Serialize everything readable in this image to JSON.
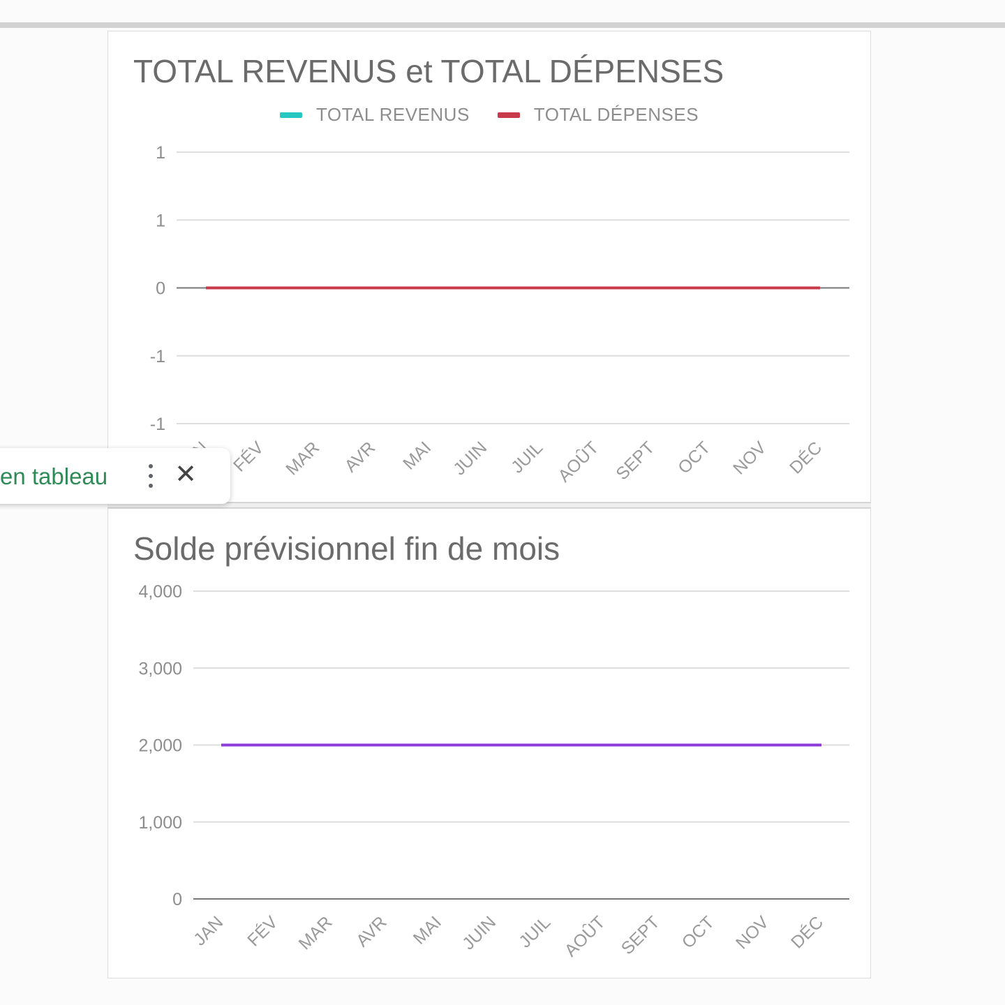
{
  "colors": {
    "revenus": "#26c6c1",
    "depenses": "#c8394a",
    "solde": "#8e3ad8"
  },
  "chart_data": [
    {
      "type": "line",
      "title": "TOTAL REVENUS et TOTAL DÉPENSES",
      "categories": [
        "JAN",
        "FÉV",
        "MAR",
        "AVR",
        "MAI",
        "JUIN",
        "JUIL",
        "AOÛT",
        "SEPT",
        "OCT",
        "NOV",
        "DÉC"
      ],
      "series": [
        {
          "name": "TOTAL REVENUS",
          "values": [
            0,
            0,
            0,
            0,
            0,
            0,
            0,
            0,
            0,
            0,
            0,
            0
          ]
        },
        {
          "name": "TOTAL DÉPENSES",
          "values": [
            0,
            0,
            0,
            0,
            0,
            0,
            0,
            0,
            0,
            0,
            0,
            0
          ]
        }
      ],
      "ylim": [
        -1,
        1
      ],
      "y_ticks": [
        1,
        0.5,
        0,
        -0.5,
        -1
      ],
      "y_tick_labels": [
        "1",
        "1",
        "0",
        "-1",
        "-1"
      ],
      "legend": "top-center",
      "grid": true
    },
    {
      "type": "line",
      "title": "Solde prévisionnel fin de mois",
      "categories": [
        "JAN",
        "FÉV",
        "MAR",
        "AVR",
        "MAI",
        "JUIN",
        "JUIL",
        "AOÛT",
        "SEPT",
        "OCT",
        "NOV",
        "DÉC"
      ],
      "series": [
        {
          "values": [
            2000,
            2000,
            2000,
            2000,
            2000,
            2000,
            2000,
            2000,
            2000,
            2000,
            2000,
            2000
          ]
        }
      ],
      "ylim": [
        0,
        4000
      ],
      "y_ticks": [
        4000,
        3000,
        2000,
        1000,
        0
      ],
      "y_tick_labels": [
        "4,000",
        "3,000",
        "2,000",
        "1,000",
        "0"
      ],
      "grid": true
    }
  ],
  "toolbar": {
    "label": "en tableau"
  },
  "icons": {
    "more": "more-vert-icon",
    "close": "close-icon"
  }
}
